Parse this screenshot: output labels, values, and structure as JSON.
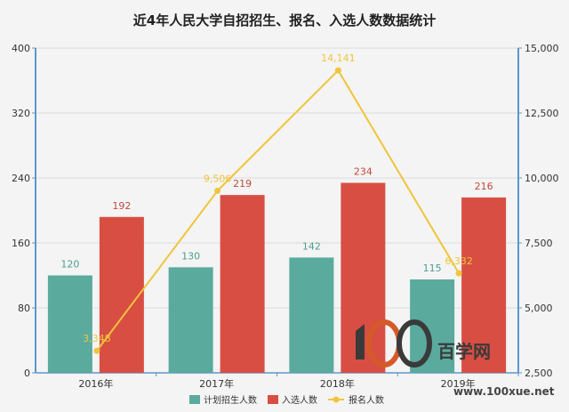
{
  "chart_data": {
    "type": "bar",
    "title": "近4年人民大学自招招生、报名、入选人数数据统计",
    "categories": [
      "2016年",
      "2017年",
      "2018年",
      "2019年"
    ],
    "series": [
      {
        "name": "计划招生人数",
        "type": "bar",
        "axis": "left",
        "color": "#5aaa9e",
        "label_color": "#4e9d90",
        "values": [
          120,
          130,
          142,
          115
        ]
      },
      {
        "name": "入选人数",
        "type": "bar",
        "axis": "left",
        "color": "#d94e43",
        "label_color": "#c0493c",
        "values": [
          192,
          219,
          234,
          216
        ]
      },
      {
        "name": "报名人数",
        "type": "line",
        "axis": "right",
        "color": "#f0c43c",
        "values": [
          3348,
          9506,
          14141,
          6332
        ],
        "labels": [
          "3,348",
          "9,506",
          "14,141",
          "6,332"
        ]
      }
    ],
    "y_left": {
      "range": [
        0,
        400
      ],
      "ticks": [
        0,
        80,
        160,
        240,
        320,
        400
      ],
      "tick_labels": [
        "0",
        "80",
        "160",
        "240",
        "320",
        "400"
      ]
    },
    "y_right": {
      "range": [
        2500,
        15000
      ],
      "ticks": [
        2500,
        5000,
        7500,
        10000,
        12500,
        15000
      ],
      "tick_labels": [
        "2,500",
        "5,000",
        "7,500",
        "10,000",
        "12,500",
        "15,000"
      ]
    },
    "grid": true,
    "legend_position": "bottom"
  },
  "watermark": {
    "text": "百学网",
    "url": "www.100xue.net",
    "mark": "100"
  }
}
